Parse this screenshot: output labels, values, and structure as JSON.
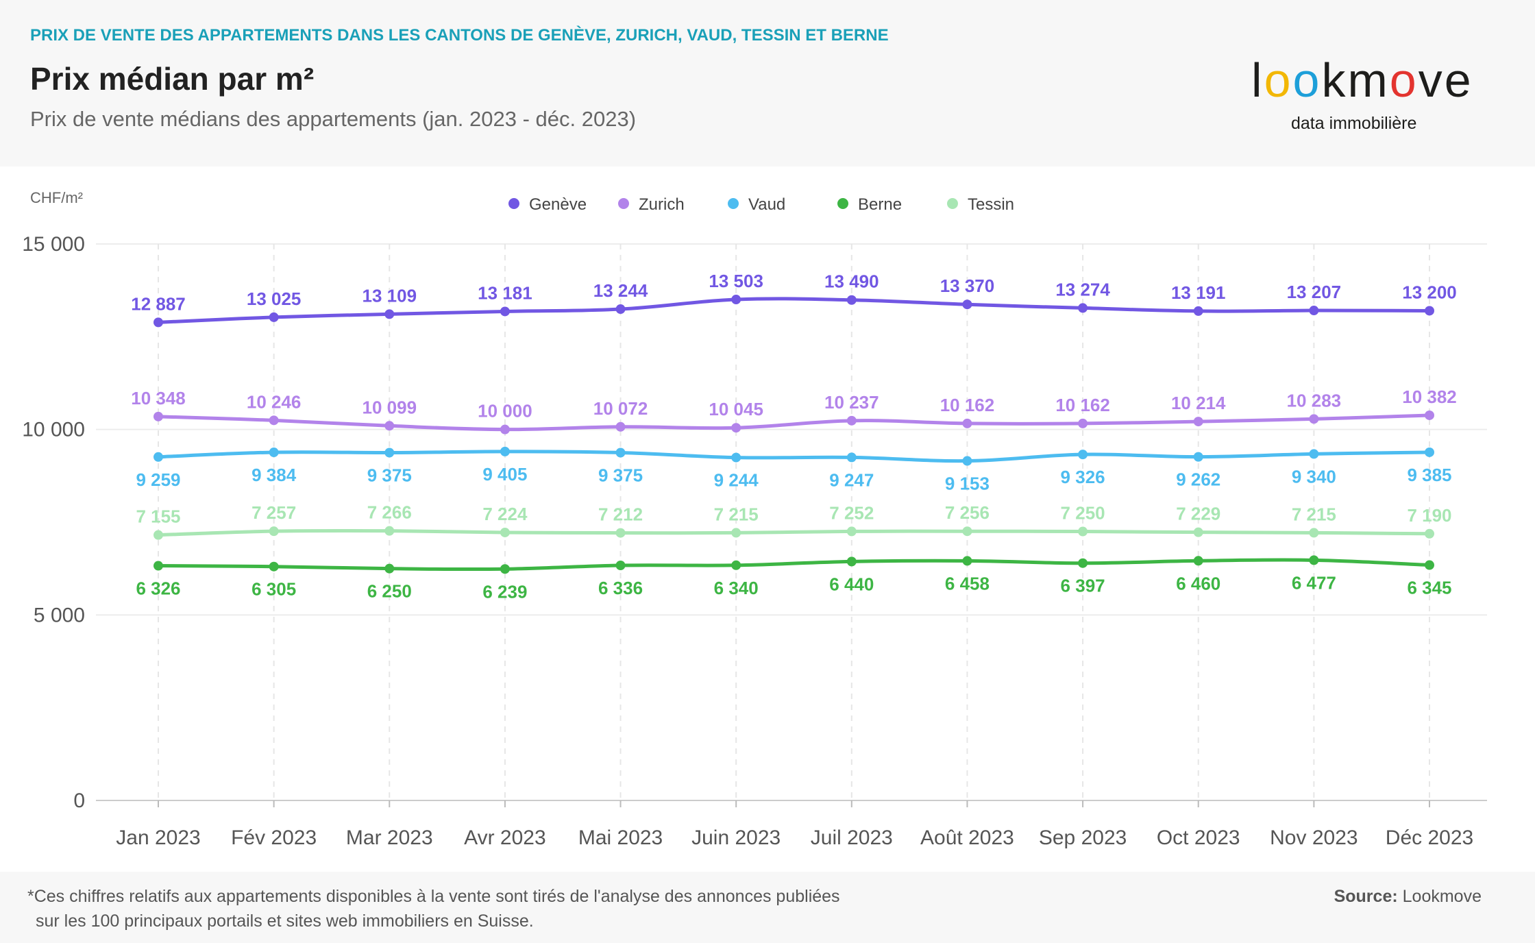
{
  "header": {
    "kicker": "PRIX DE VENTE DES APPARTEMENTS DANS LES CANTONS DE GENÈVE, ZURICH, VAUD, TESSIN ET BERNE",
    "title": "Prix médian par m²",
    "subtitle": "Prix de vente médians des appartements (jan. 2023 - déc. 2023)"
  },
  "logo": {
    "letters": [
      "l",
      "o",
      "o",
      "k",
      "m",
      "o",
      "v",
      "e"
    ],
    "letter_colors": [
      "#1d1d1b",
      "#f2b705",
      "#1d9fd9",
      "#1d1d1b",
      "#1d1d1b",
      "#e3342f",
      "#1d1d1b",
      "#1d1d1b"
    ],
    "tagline": "data immobilière"
  },
  "footer": {
    "note_line1": "*Ces chiffres relatifs aux appartements disponibles à la vente sont tirés de l'analyse des annonces publiées",
    "note_line2": "sur les 100 principaux portails et sites web immobiliers en Suisse.",
    "source_label": "Source:",
    "source_value": "Lookmove"
  },
  "chart_data": {
    "type": "line",
    "ylabel": "CHF/m²",
    "ylim": [
      0,
      15000
    ],
    "yticks": [
      0,
      5000,
      10000,
      15000
    ],
    "ytick_labels": [
      "0",
      "5 000",
      "10 000",
      "15 000"
    ],
    "grid": true,
    "legend_position": "top-center",
    "categories": [
      "Jan 2023",
      "Fév 2023",
      "Mar 2023",
      "Avr 2023",
      "Mai 2023",
      "Juin 2023",
      "Juil 2023",
      "Août 2023",
      "Sep 2023",
      "Oct 2023",
      "Nov 2023",
      "Déc 2023"
    ],
    "series": [
      {
        "name": "Genève",
        "color": "#7157e3",
        "label_side": "above",
        "values": [
          12887,
          13025,
          13109,
          13181,
          13244,
          13503,
          13490,
          13370,
          13274,
          13191,
          13207,
          13200
        ],
        "labels": [
          "12 887",
          "13 025",
          "13 109",
          "13 181",
          "13 244",
          "13 503",
          "13 490",
          "13 370",
          "13 274",
          "13 191",
          "13 207",
          "13 200"
        ]
      },
      {
        "name": "Zurich",
        "color": "#b283ea",
        "label_side": "above",
        "values": [
          10348,
          10246,
          10099,
          10000,
          10072,
          10045,
          10237,
          10162,
          10162,
          10214,
          10283,
          10382
        ],
        "labels": [
          "10 348",
          "10 246",
          "10 099",
          "10 000",
          "10 072",
          "10 045",
          "10 237",
          "10 162",
          "10 162",
          "10 214",
          "10 283",
          "10 382"
        ]
      },
      {
        "name": "Vaud",
        "color": "#4dbcf0",
        "label_side": "below",
        "values": [
          9259,
          9384,
          9375,
          9405,
          9375,
          9244,
          9247,
          9153,
          9326,
          9262,
          9340,
          9385
        ],
        "labels": [
          "9 259",
          "9 384",
          "9 375",
          "9 405",
          "9 375",
          "9 244",
          "9 247",
          "9 153",
          "9 326",
          "9 262",
          "9 340",
          "9 385"
        ]
      },
      {
        "name": "Berne",
        "color": "#3db544",
        "label_side": "below",
        "values": [
          6326,
          6305,
          6250,
          6239,
          6336,
          6340,
          6440,
          6458,
          6397,
          6460,
          6477,
          6345
        ],
        "labels": [
          "6 326",
          "6 305",
          "6 250",
          "6 239",
          "6 336",
          "6 340",
          "6 440",
          "6 458",
          "6 397",
          "6 460",
          "6 477",
          "6 345"
        ]
      },
      {
        "name": "Tessin",
        "color": "#a8e6b3",
        "label_side": "above",
        "values": [
          7155,
          7257,
          7266,
          7224,
          7212,
          7215,
          7252,
          7256,
          7250,
          7229,
          7215,
          7190
        ],
        "labels": [
          "7 155",
          "7 257",
          "7 266",
          "7 224",
          "7 212",
          "7 215",
          "7 252",
          "7 256",
          "7 250",
          "7 229",
          "7 215",
          "7 190"
        ]
      }
    ]
  }
}
